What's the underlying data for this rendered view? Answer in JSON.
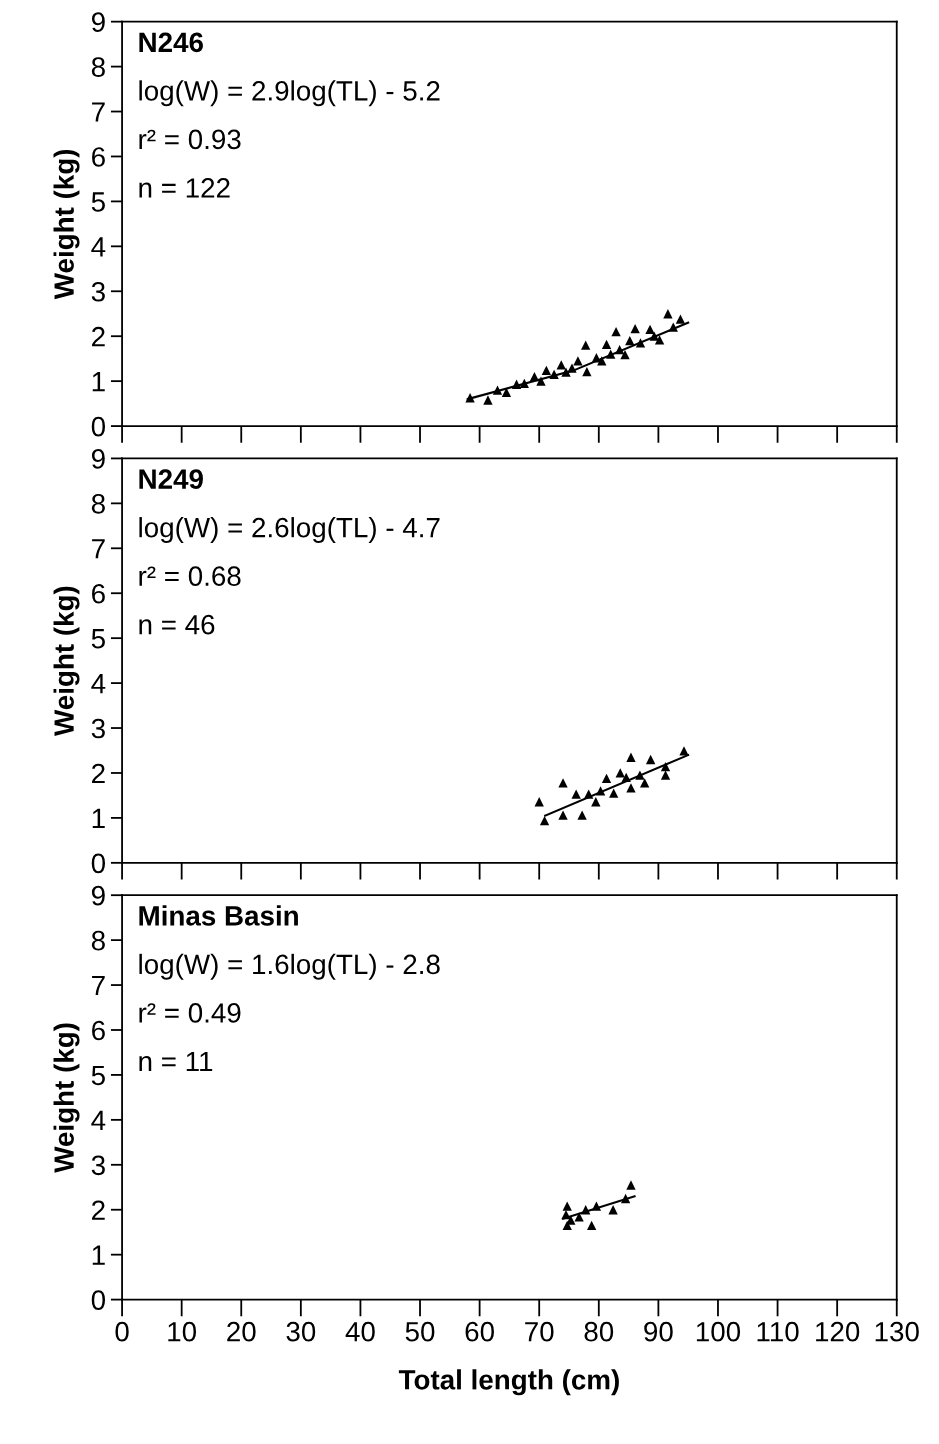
{
  "chart_data": [
    {
      "type": "scatter",
      "ylabel": "Weight (kg)",
      "xlim": [
        0,
        130
      ],
      "ylim": [
        0,
        9
      ],
      "xticks": [
        0,
        10,
        20,
        30,
        40,
        50,
        60,
        70,
        80,
        90,
        100,
        110,
        120,
        130
      ],
      "yticks": [
        0,
        1,
        2,
        3,
        4,
        5,
        6,
        7,
        8,
        9
      ],
      "tick_labels": "y",
      "grid": false,
      "legend": false,
      "annotations": [
        "N246",
        "log(W) = 2.9log(TL) - 5.2",
        "r² = 0.93",
        "n = 122"
      ],
      "series": [
        {
          "marker": "triangle",
          "color": "#000000",
          "x": [
            58.4,
            61.4,
            63,
            64.5,
            66.2,
            67.5,
            69.2,
            70.3,
            71.2,
            72.5,
            73.7,
            74.5,
            75.5,
            76.5,
            77.8,
            78,
            79.6,
            80.5,
            81.3,
            82,
            82.9,
            83.5,
            84.4,
            85.2,
            86.1,
            87,
            88.6,
            89.3,
            90.2,
            91.6,
            92.5,
            93.7
          ],
          "values": [
            0.63,
            0.58,
            0.8,
            0.75,
            0.93,
            0.95,
            1.1,
            1.0,
            1.24,
            1.15,
            1.36,
            1.2,
            1.29,
            1.45,
            1.8,
            1.21,
            1.52,
            1.45,
            1.82,
            1.6,
            2.1,
            1.7,
            1.59,
            1.9,
            2.17,
            1.85,
            2.15,
            2.0,
            1.92,
            2.5,
            2.2,
            2.38
          ]
        },
        {
          "type": "line",
          "color": "#000000",
          "x": [
            58,
            76,
            95
          ],
          "values": [
            0.6,
            1.25,
            2.3
          ]
        }
      ]
    },
    {
      "type": "scatter",
      "ylabel": "Weight (kg)",
      "xlim": [
        0,
        130
      ],
      "ylim": [
        0,
        9
      ],
      "xticks": [
        0,
        10,
        20,
        30,
        40,
        50,
        60,
        70,
        80,
        90,
        100,
        110,
        120,
        130
      ],
      "yticks": [
        0,
        1,
        2,
        3,
        4,
        5,
        6,
        7,
        8,
        9
      ],
      "tick_labels": "y",
      "grid": false,
      "legend": false,
      "annotations": [
        "N249",
        "log(W) = 2.6log(TL) - 4.7",
        "r² = 0.68",
        "n = 46"
      ],
      "series": [
        {
          "marker": "triangle",
          "color": "#000000",
          "x": [
            70,
            70.9,
            74,
            74,
            76.2,
            77.2,
            78.3,
            79.5,
            80.3,
            81.3,
            82.5,
            83.6,
            84.6,
            85.4,
            85.4,
            86.9,
            87.7,
            88.7,
            91.2,
            91.2,
            94.3
          ],
          "values": [
            1.36,
            0.94,
            1.78,
            1.06,
            1.53,
            1.06,
            1.53,
            1.36,
            1.6,
            1.88,
            1.55,
            2.0,
            1.9,
            2.35,
            1.67,
            1.95,
            1.78,
            2.3,
            2.14,
            1.95,
            2.49
          ]
        },
        {
          "type": "line",
          "color": "#000000",
          "x": [
            71,
            95
          ],
          "values": [
            1.05,
            2.4
          ]
        }
      ]
    },
    {
      "type": "scatter",
      "xlabel": "Total length (cm)",
      "ylabel": "Weight (kg)",
      "xlim": [
        0,
        130
      ],
      "ylim": [
        0,
        9
      ],
      "xticks": [
        0,
        10,
        20,
        30,
        40,
        50,
        60,
        70,
        80,
        90,
        100,
        110,
        120,
        130
      ],
      "yticks": [
        0,
        1,
        2,
        3,
        4,
        5,
        6,
        7,
        8,
        9
      ],
      "grid": false,
      "legend": false,
      "annotations": [
        "Minas Basin",
        "log(W) = 1.6log(TL) - 2.8",
        "r² = 0.49",
        "n = 11"
      ],
      "series": [
        {
          "marker": "triangle",
          "color": "#000000",
          "x": [
            74.7,
            74.7,
            74.5,
            75.3,
            76.7,
            77.8,
            78.8,
            79.6,
            82.4,
            84.5,
            85.4
          ],
          "values": [
            2.08,
            1.65,
            1.89,
            1.77,
            1.84,
            2.0,
            1.65,
            2.08,
            2.0,
            2.25,
            2.55
          ]
        },
        {
          "type": "line",
          "color": "#000000",
          "x": [
            74,
            86
          ],
          "values": [
            1.8,
            2.3
          ]
        }
      ]
    }
  ]
}
